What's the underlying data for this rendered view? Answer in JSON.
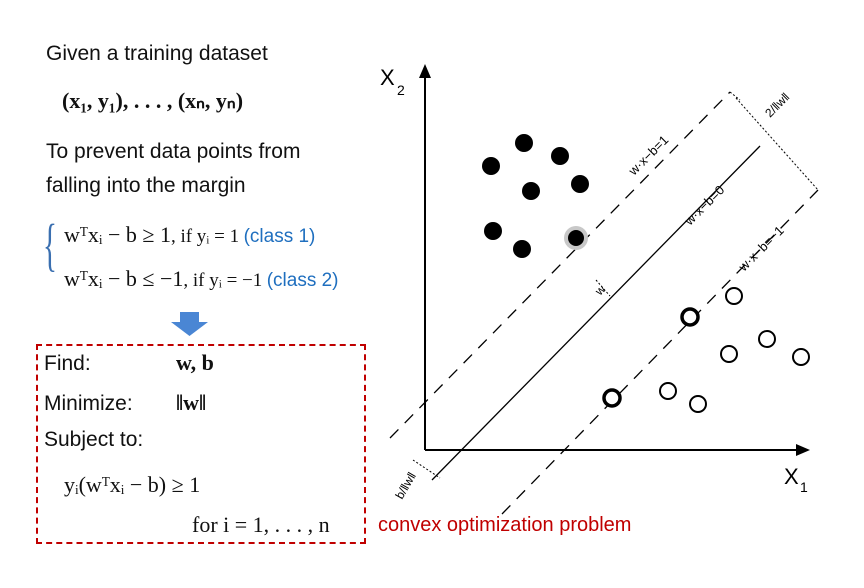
{
  "intro": {
    "heading": "Given a training dataset",
    "dataset": "(x₁, y₁), . . . , (xₙ, yₙ)",
    "prevent_line1": "To prevent data points from",
    "prevent_line2": "falling into the margin"
  },
  "constraints": [
    {
      "expr": "wᵀxᵢ − b ≥ 1",
      "cond": ", if yᵢ = 1",
      "class_label": "(class 1)"
    },
    {
      "expr": "wᵀxᵢ − b ≤ −1",
      "cond": ", if yᵢ = −1",
      "class_label": "(class 2)"
    }
  ],
  "optimization": {
    "find_label": "Find:",
    "find_value": "w, b",
    "minimize_label": "Minimize:",
    "minimize_value": "‖w‖",
    "subject_label": "Subject to:",
    "constraint_expr": "yᵢ(wᵀxᵢ − b) ≥ 1",
    "range_text": "for i = 1, . . . , n"
  },
  "annotation": "convex optimization problem",
  "diagram": {
    "x1_label": "X",
    "x1_sub": "1",
    "x2_label": "X",
    "x2_sub": "2",
    "line_upper": "w·x−b=1",
    "line_middle": "w·x−b=0",
    "line_lower": "w·x−b=−1",
    "margin_label": "2/‖w‖",
    "offset_label": "b/‖w‖",
    "normal_label": "w"
  },
  "colors": {
    "accent_blue": "#1f6fbf",
    "arrow_blue": "#4a86d4",
    "box_red": "#c00000",
    "brace_blue": "#3a6fb0"
  }
}
